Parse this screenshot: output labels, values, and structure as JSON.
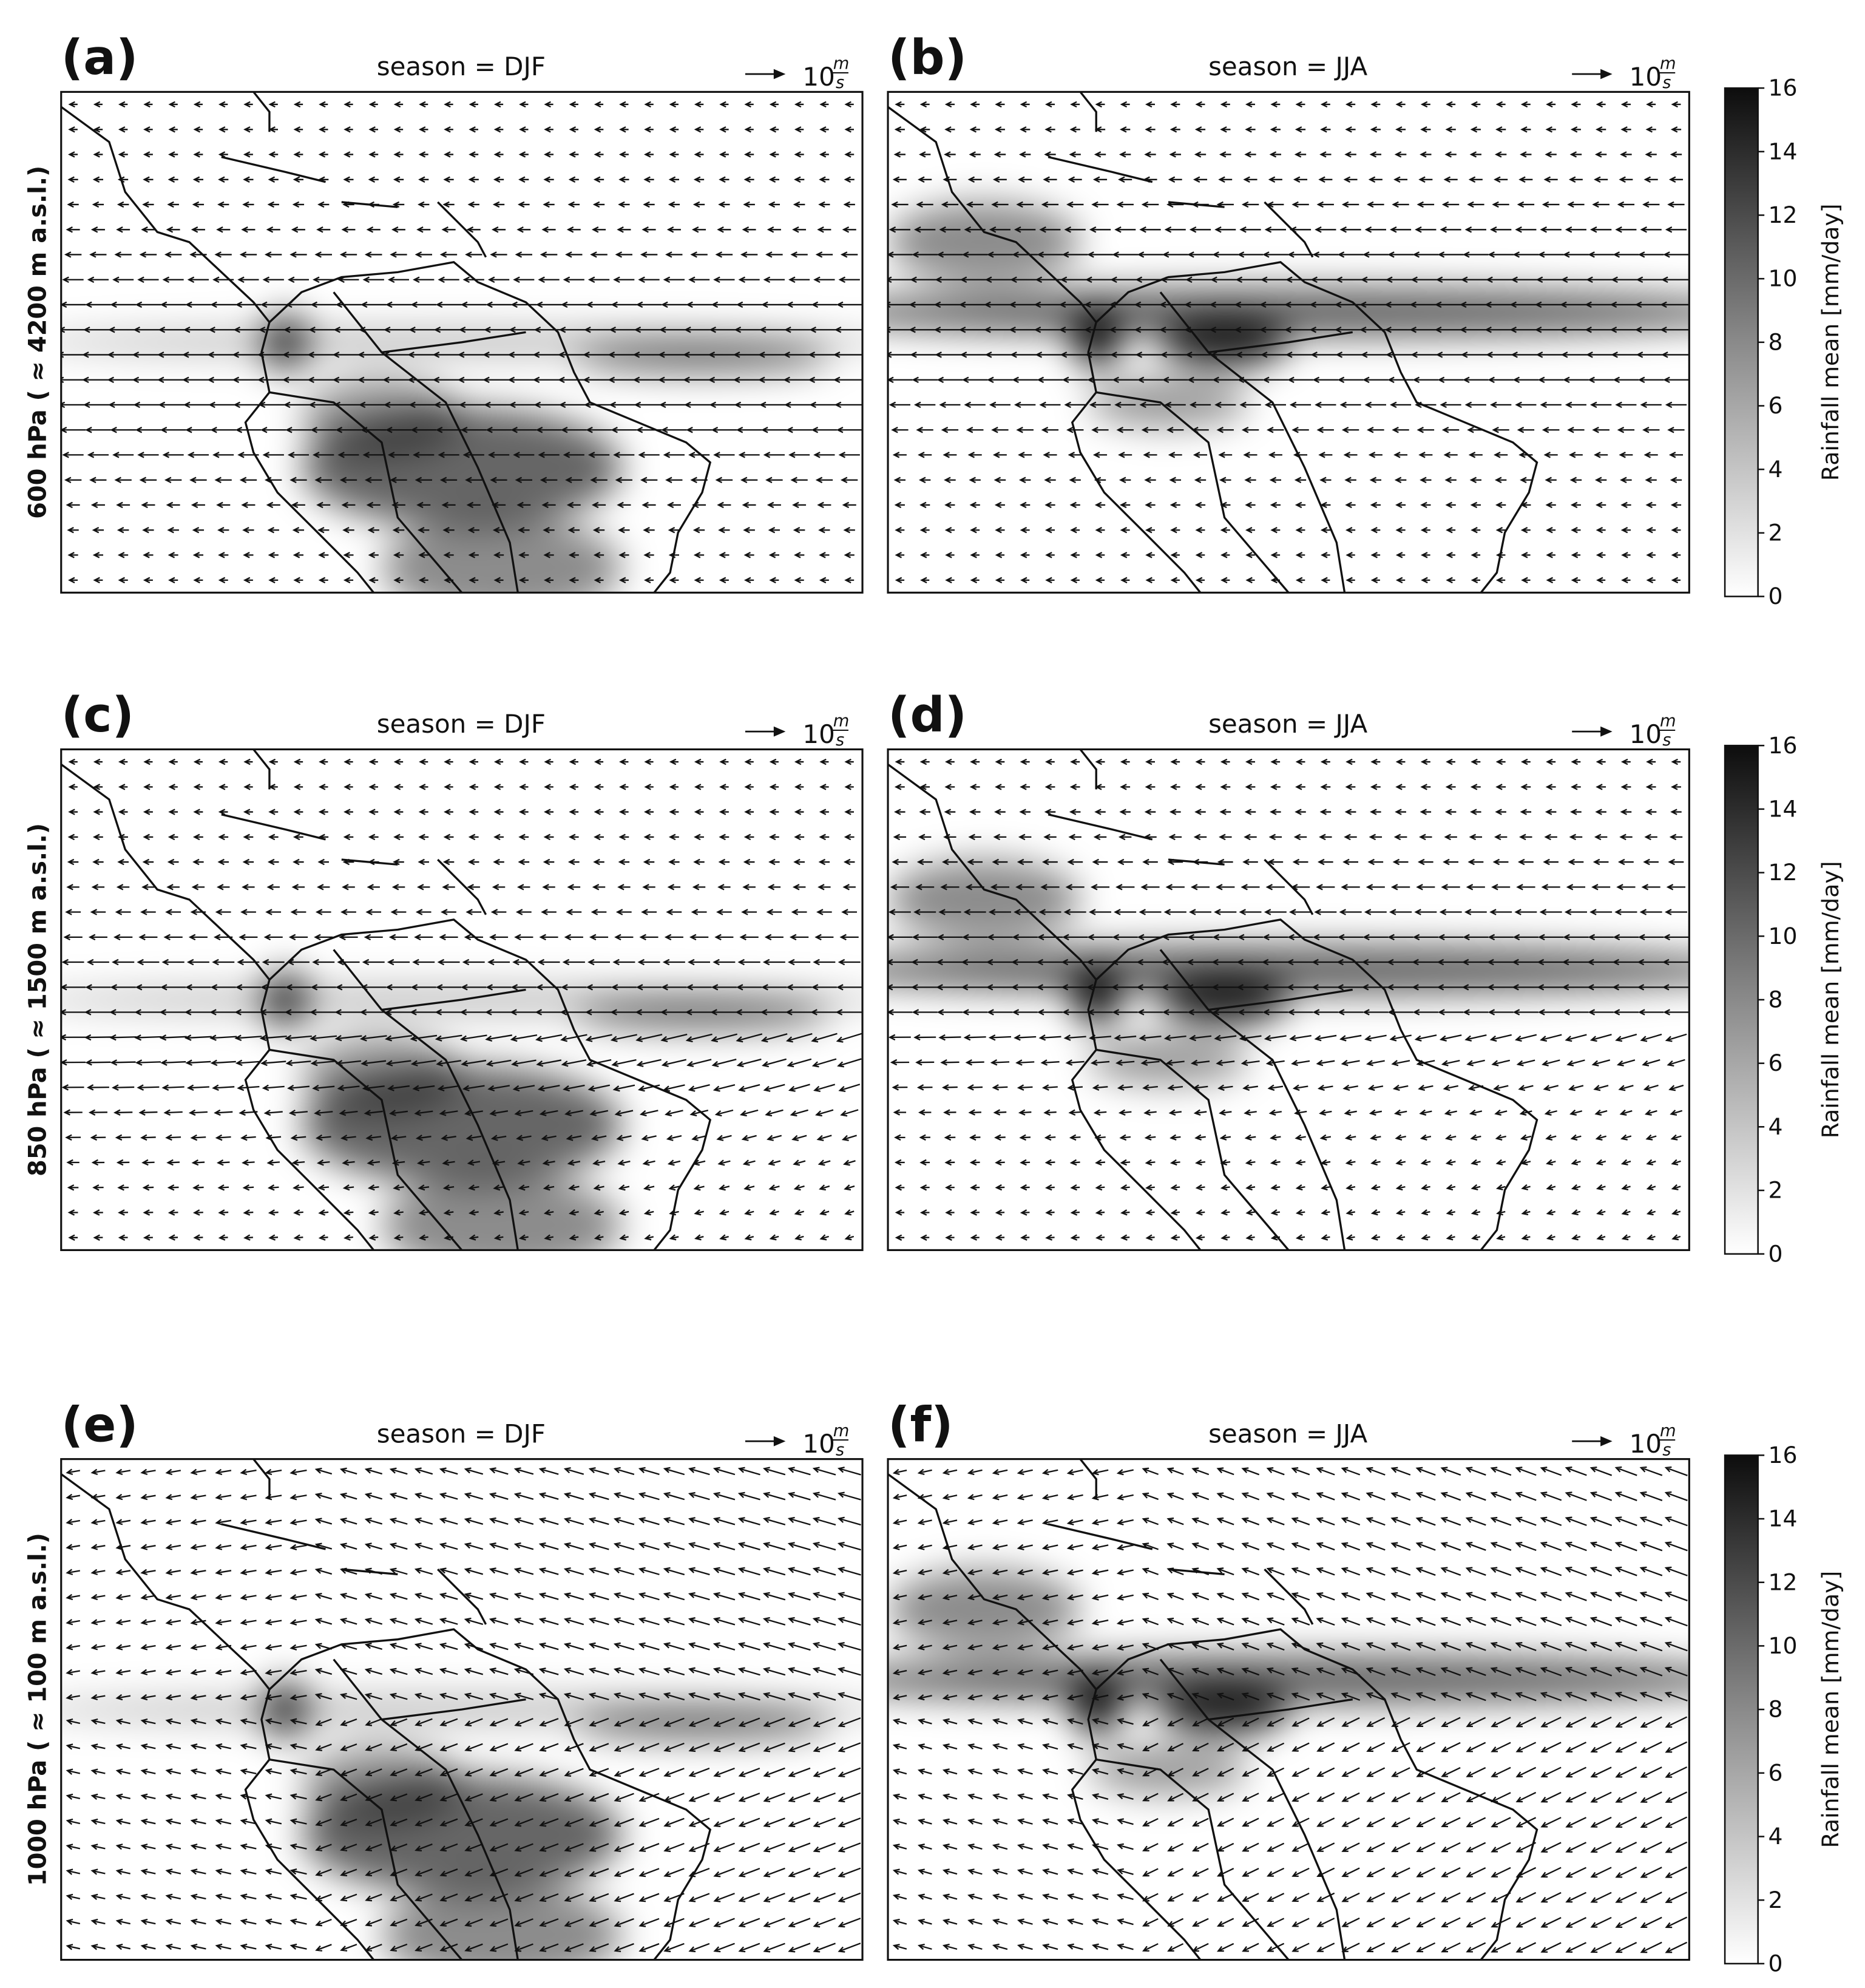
{
  "chart_data": [
    {
      "type": "quiver-map",
      "panel_label": "(a)",
      "title": "season = DJF",
      "ylabel": "600 hPa ( ≈ 4200 m a.s.l.)",
      "reference": {
        "magnitude": "10",
        "unit_numerator": "m",
        "unit_denominator": "s"
      }
    },
    {
      "type": "quiver-map",
      "panel_label": "(b)",
      "title": "season = JJA",
      "reference": {
        "magnitude": "10",
        "unit_numerator": "m",
        "unit_denominator": "s"
      },
      "colorbar": {
        "label": "Rainfall mean [mm/day]",
        "colormap": "Greys",
        "ylim": [
          0,
          16
        ],
        "yticks": [
          0,
          2,
          4,
          6,
          8,
          10,
          12,
          14,
          16
        ]
      }
    },
    {
      "type": "quiver-map",
      "panel_label": "(c)",
      "title": "season = DJF",
      "ylabel": "850 hPa ( ≈ 1500 m a.s.l.)",
      "reference": {
        "magnitude": "10",
        "unit_numerator": "m",
        "unit_denominator": "s"
      }
    },
    {
      "type": "quiver-map",
      "panel_label": "(d)",
      "title": "season = JJA",
      "reference": {
        "magnitude": "10",
        "unit_numerator": "m",
        "unit_denominator": "s"
      },
      "colorbar": {
        "label": "Rainfall mean [mm/day]",
        "colormap": "Greys",
        "ylim": [
          0,
          16
        ],
        "yticks": [
          0,
          2,
          4,
          6,
          8,
          10,
          12,
          14,
          16
        ]
      }
    },
    {
      "type": "quiver-map",
      "panel_label": "(e)",
      "title": "season = DJF",
      "ylabel": "1000 hPa ( ≈ 100 m a.s.l.)",
      "reference": {
        "magnitude": "10",
        "unit_numerator": "m",
        "unit_denominator": "s"
      }
    },
    {
      "type": "quiver-map",
      "panel_label": "(f)",
      "title": "season = JJA",
      "reference": {
        "magnitude": "10",
        "unit_numerator": "m",
        "unit_denominator": "s"
      },
      "colorbar": {
        "label": "Rainfall mean [mm/day]",
        "colormap": "Greys",
        "ylim": [
          0,
          16
        ],
        "yticks": [
          0,
          2,
          4,
          6,
          8,
          10,
          12,
          14,
          16
        ]
      }
    }
  ]
}
